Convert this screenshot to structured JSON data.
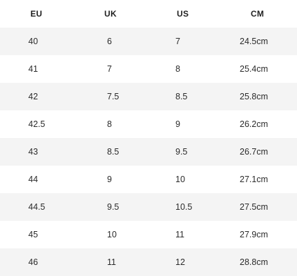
{
  "size_chart": {
    "headers": [
      "EU",
      "UK",
      "US",
      "CM"
    ],
    "rows": [
      [
        "40",
        "6",
        "7",
        "24.5cm"
      ],
      [
        "41",
        "7",
        "8",
        "25.4cm"
      ],
      [
        "42",
        "7.5",
        "8.5",
        "25.8cm"
      ],
      [
        "42.5",
        "8",
        "9",
        "26.2cm"
      ],
      [
        "43",
        "8.5",
        "9.5",
        "26.7cm"
      ],
      [
        "44",
        "9",
        "10",
        "27.1cm"
      ],
      [
        "44.5",
        "9.5",
        "10.5",
        "27.5cm"
      ],
      [
        "45",
        "10",
        "11",
        "27.9cm"
      ],
      [
        "46",
        "11",
        "12",
        "28.8cm"
      ]
    ]
  }
}
